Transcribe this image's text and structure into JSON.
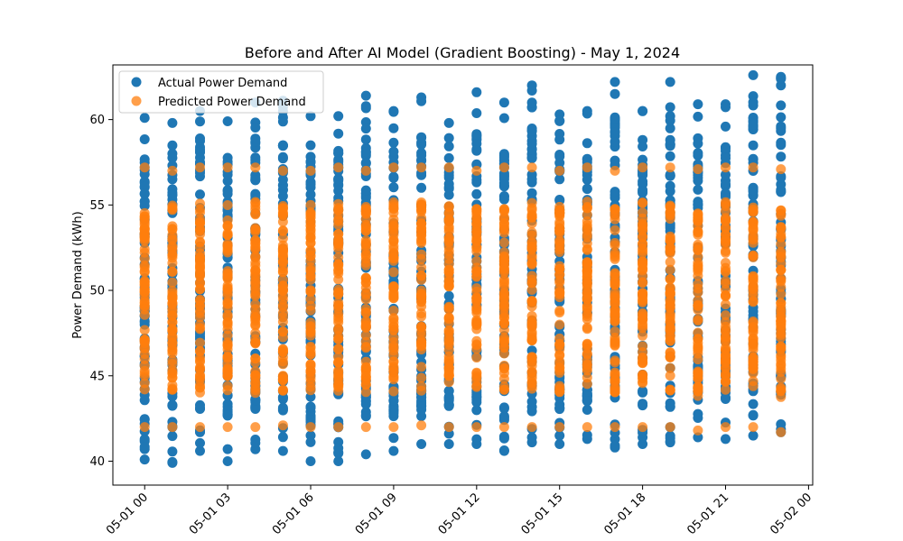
{
  "chart_data": {
    "type": "scatter",
    "title": "Before and After AI Model (Gradient Boosting) - May 1, 2024",
    "xlabel": "",
    "ylabel": "Power Demand (kWh)",
    "x_ticks": [
      "05-01 00",
      "05-01 03",
      "05-01 06",
      "05-01 09",
      "05-01 12",
      "05-01 15",
      "05-01 18",
      "05-01 21",
      "05-02 00"
    ],
    "y_ticks": [
      "40",
      "45",
      "50",
      "55",
      "60"
    ],
    "ylim": [
      38.6,
      63.2
    ],
    "x_hours": [
      0,
      1,
      2,
      3,
      4,
      5,
      6,
      7,
      8,
      9,
      10,
      11,
      12,
      13,
      14,
      15,
      16,
      17,
      18,
      19,
      20,
      21,
      22,
      23
    ],
    "xlim_hours": [
      -1.15,
      24.15
    ],
    "legend_position": "upper-left",
    "grid": false,
    "series": [
      {
        "name": "Actual Power Demand",
        "color": "#1f77b4",
        "per_hour_range": [
          [
            40.1,
            60.1
          ],
          [
            39.9,
            59.8
          ],
          [
            40.6,
            60.5
          ],
          [
            40.0,
            59.9
          ],
          [
            40.7,
            61.0
          ],
          [
            40.6,
            61.1
          ],
          [
            40.0,
            60.2
          ],
          [
            40.0,
            60.2
          ],
          [
            40.4,
            61.4
          ],
          [
            40.6,
            60.5
          ],
          [
            41.0,
            61.3
          ],
          [
            41.0,
            59.8
          ],
          [
            41.0,
            61.6
          ],
          [
            40.6,
            61.0
          ],
          [
            41.1,
            62.0
          ],
          [
            41.0,
            60.3
          ],
          [
            41.3,
            60.5
          ],
          [
            40.8,
            62.2
          ],
          [
            41.0,
            60.5
          ],
          [
            41.1,
            62.2
          ],
          [
            41.4,
            60.9
          ],
          [
            41.3,
            60.9
          ],
          [
            41.5,
            62.6
          ],
          [
            41.7,
            62.5
          ]
        ]
      },
      {
        "name": "Predicted Power Demand",
        "color": "#ff7f0e",
        "opacity": 0.75,
        "per_hour_range": [
          [
            42.0,
            57.2
          ],
          [
            42.0,
            57.0
          ],
          [
            42.0,
            57.2
          ],
          [
            42.0,
            57.2
          ],
          [
            42.0,
            57.2
          ],
          [
            42.1,
            57.0
          ],
          [
            42.0,
            57.0
          ],
          [
            42.0,
            57.2
          ],
          [
            42.0,
            57.0
          ],
          [
            42.0,
            57.2
          ],
          [
            42.1,
            57.2
          ],
          [
            42.0,
            57.2
          ],
          [
            42.0,
            57.0
          ],
          [
            42.0,
            57.2
          ],
          [
            42.0,
            57.2
          ],
          [
            42.0,
            57.0
          ],
          [
            42.0,
            57.2
          ],
          [
            42.0,
            57.0
          ],
          [
            42.0,
            57.2
          ],
          [
            42.0,
            57.2
          ],
          [
            41.8,
            57.1
          ],
          [
            42.0,
            57.2
          ],
          [
            42.0,
            57.2
          ],
          [
            41.7,
            57.1
          ]
        ]
      }
    ]
  }
}
